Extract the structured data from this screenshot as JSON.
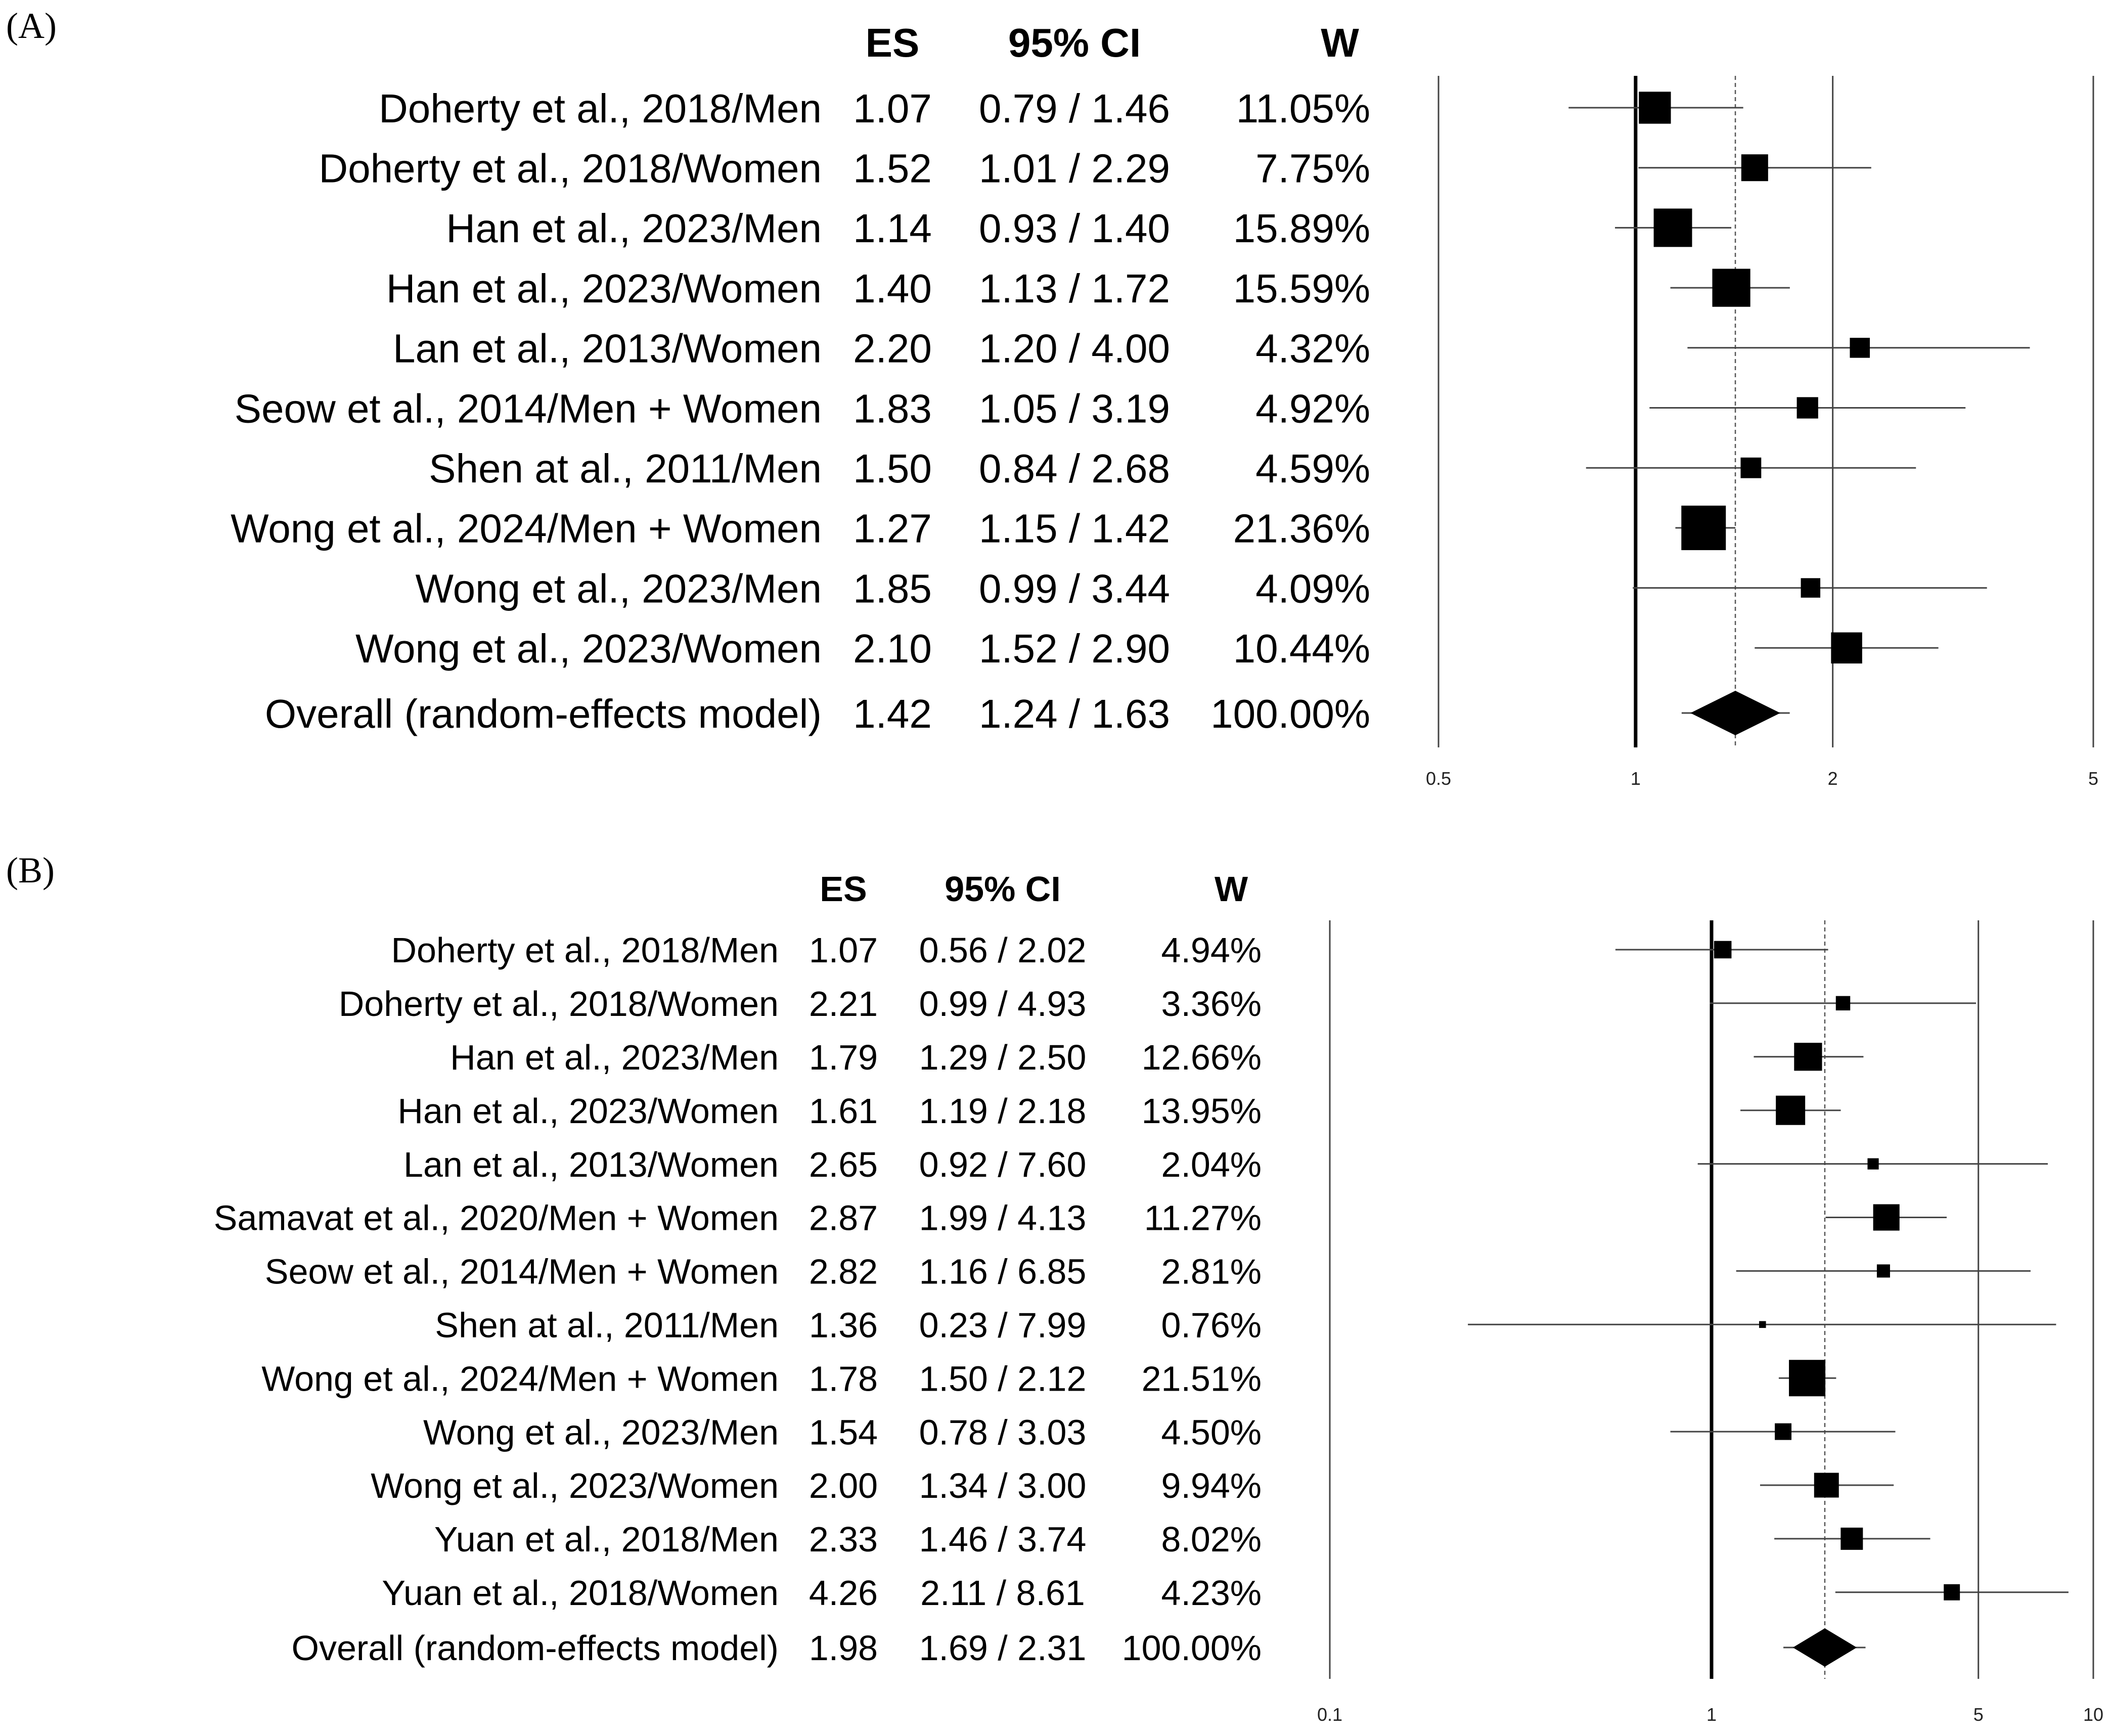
{
  "chart_data": [
    {
      "type": "forest",
      "panel_label": "(A)",
      "columns": [
        "ES",
        "95% CI",
        "W"
      ],
      "axis_scale": "log",
      "xlim": [
        0.5,
        5
      ],
      "tick_values": [
        0.5,
        1,
        2,
        5
      ],
      "tick_labels": [
        "0.5",
        "1",
        "2",
        "5"
      ],
      "reference_line": 1,
      "pooled_line": 1.42,
      "studies": [
        {
          "label": "Doherty et al., 2018/Men",
          "es": 1.07,
          "ci_low": 0.79,
          "ci_high": 1.46,
          "es_text": "1.07",
          "ci_text": "0.79 / 1.46",
          "w_text": "11.05%",
          "weight": 11.05
        },
        {
          "label": "Doherty et al., 2018/Women",
          "es": 1.52,
          "ci_low": 1.01,
          "ci_high": 2.29,
          "es_text": "1.52",
          "ci_text": "1.01 / 2.29",
          "w_text": "7.75%",
          "weight": 7.75
        },
        {
          "label": "Han et al., 2023/Men",
          "es": 1.14,
          "ci_low": 0.93,
          "ci_high": 1.4,
          "es_text": "1.14",
          "ci_text": "0.93 / 1.40",
          "w_text": "15.89%",
          "weight": 15.89
        },
        {
          "label": "Han et al., 2023/Women",
          "es": 1.4,
          "ci_low": 1.13,
          "ci_high": 1.72,
          "es_text": "1.40",
          "ci_text": "1.13 / 1.72",
          "w_text": "15.59%",
          "weight": 15.59
        },
        {
          "label": "Lan et al.,  2013/Women",
          "es": 2.2,
          "ci_low": 1.2,
          "ci_high": 4.0,
          "es_text": "2.20",
          "ci_text": "1.20 / 4.00",
          "w_text": "4.32%",
          "weight": 4.32
        },
        {
          "label": "Seow et al.,  2014/Men + Women",
          "es": 1.83,
          "ci_low": 1.05,
          "ci_high": 3.19,
          "es_text": "1.83",
          "ci_text": "1.05 / 3.19",
          "w_text": "4.92%",
          "weight": 4.92
        },
        {
          "label": "Shen at al.,  2011/Men",
          "es": 1.5,
          "ci_low": 0.84,
          "ci_high": 2.68,
          "es_text": "1.50",
          "ci_text": "0.84 / 2.68",
          "w_text": "4.59%",
          "weight": 4.59
        },
        {
          "label": "Wong et al.,  2024/Men + Women",
          "es": 1.27,
          "ci_low": 1.15,
          "ci_high": 1.42,
          "es_text": "1.27",
          "ci_text": "1.15 / 1.42",
          "w_text": "21.36%",
          "weight": 21.36
        },
        {
          "label": "Wong et al., 2023/Men",
          "es": 1.85,
          "ci_low": 0.99,
          "ci_high": 3.44,
          "es_text": "1.85",
          "ci_text": "0.99 / 3.44",
          "w_text": "4.09%",
          "weight": 4.09
        },
        {
          "label": "Wong et al., 2023/Women",
          "es": 2.1,
          "ci_low": 1.52,
          "ci_high": 2.9,
          "es_text": "2.10",
          "ci_text": "1.52 / 2.90",
          "w_text": "10.44%",
          "weight": 10.44
        }
      ],
      "overall": {
        "label": "Overall (random-effects model)",
        "es": 1.42,
        "ci_low": 1.24,
        "ci_high": 1.63,
        "es_text": "1.42",
        "ci_text": "1.24 / 1.63",
        "w_text": "100.00%"
      }
    },
    {
      "type": "forest",
      "panel_label": "(B)",
      "columns": [
        "ES",
        "95% CI",
        "W"
      ],
      "axis_scale": "log",
      "xlim": [
        0.1,
        10
      ],
      "tick_values": [
        0.1,
        1,
        5,
        10
      ],
      "tick_labels": [
        "0.1",
        "1",
        "5",
        "10"
      ],
      "reference_line": 1,
      "pooled_line": 1.98,
      "studies": [
        {
          "label": "Doherty et al., 2018/Men",
          "es": 1.07,
          "ci_low": 0.56,
          "ci_high": 2.02,
          "es_text": "1.07",
          "ci_text": "0.56 / 2.02",
          "w_text": "4.94%",
          "weight": 4.94
        },
        {
          "label": "Doherty et al., 2018/Women",
          "es": 2.21,
          "ci_low": 0.99,
          "ci_high": 4.93,
          "es_text": "2.21",
          "ci_text": "0.99 / 4.93",
          "w_text": "3.36%",
          "weight": 3.36
        },
        {
          "label": "Han et al., 2023/Men",
          "es": 1.79,
          "ci_low": 1.29,
          "ci_high": 2.5,
          "es_text": "1.79",
          "ci_text": "1.29 / 2.50",
          "w_text": "12.66%",
          "weight": 12.66
        },
        {
          "label": "Han et al., 2023/Women",
          "es": 1.61,
          "ci_low": 1.19,
          "ci_high": 2.18,
          "es_text": "1.61",
          "ci_text": "1.19 / 2.18",
          "w_text": "13.95%",
          "weight": 13.95
        },
        {
          "label": "Lan et al.,  2013/Women",
          "es": 2.65,
          "ci_low": 0.92,
          "ci_high": 7.6,
          "es_text": "2.65",
          "ci_text": "0.92 / 7.60",
          "w_text": "2.04%",
          "weight": 2.04
        },
        {
          "label": "Samavat et al., 2020/Men + Women",
          "es": 2.87,
          "ci_low": 1.99,
          "ci_high": 4.13,
          "es_text": "2.87",
          "ci_text": "1.99 / 4.13",
          "w_text": "11.27%",
          "weight": 11.27
        },
        {
          "label": "Seow et al.,  2014/Men + Women",
          "es": 2.82,
          "ci_low": 1.16,
          "ci_high": 6.85,
          "es_text": "2.82",
          "ci_text": "1.16 / 6.85",
          "w_text": "2.81%",
          "weight": 2.81
        },
        {
          "label": "Shen at al.,  2011/Men",
          "es": 1.36,
          "ci_low": 0.23,
          "ci_high": 7.99,
          "es_text": "1.36",
          "ci_text": "0.23 / 7.99",
          "w_text": "0.76%",
          "weight": 0.76
        },
        {
          "label": "Wong et al.,  2024/Men + Women",
          "es": 1.78,
          "ci_low": 1.5,
          "ci_high": 2.12,
          "es_text": "1.78",
          "ci_text": "1.50 / 2.12",
          "w_text": "21.51%",
          "weight": 21.51
        },
        {
          "label": "Wong et al., 2023/Men",
          "es": 1.54,
          "ci_low": 0.78,
          "ci_high": 3.03,
          "es_text": "1.54",
          "ci_text": "0.78 / 3.03",
          "w_text": "4.50%",
          "weight": 4.5
        },
        {
          "label": "Wong et al., 2023/Women",
          "es": 2.0,
          "ci_low": 1.34,
          "ci_high": 3.0,
          "es_text": "2.00",
          "ci_text": "1.34 / 3.00",
          "w_text": "9.94%",
          "weight": 9.94
        },
        {
          "label": "Yuan et al., 2018/Men",
          "es": 2.33,
          "ci_low": 1.46,
          "ci_high": 3.74,
          "es_text": "2.33",
          "ci_text": "1.46 / 3.74",
          "w_text": "8.02%",
          "weight": 8.02
        },
        {
          "label": "Yuan et al., 2018/Women",
          "es": 4.26,
          "ci_low": 2.11,
          "ci_high": 8.61,
          "es_text": "4.26",
          "ci_text": "2.11 / 8.61",
          "w_text": "4.23%",
          "weight": 4.23
        }
      ],
      "overall": {
        "label": "Overall (random-effects model)",
        "es": 1.98,
        "ci_low": 1.69,
        "ci_high": 2.31,
        "es_text": "1.98",
        "ci_text": "1.69 / 2.31",
        "w_text": "100.00%"
      }
    }
  ]
}
